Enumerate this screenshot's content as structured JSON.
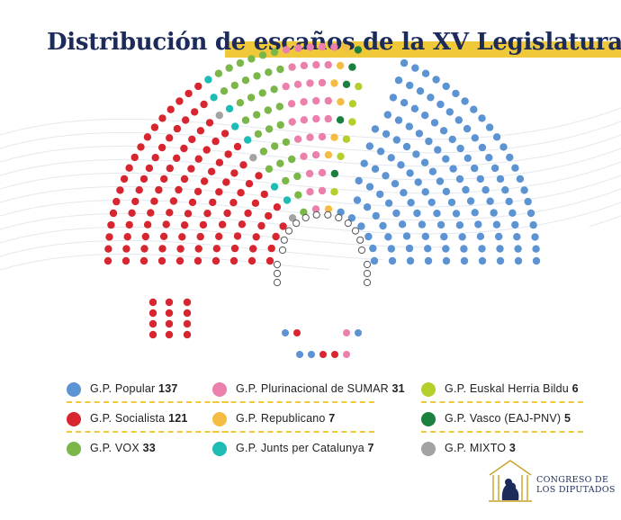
{
  "title": "Distribución de escaños de la XV Legislatura",
  "colors": {
    "title": "#1c2b5a",
    "accent_band": "#f0c93a",
    "government_seat_outline": "#555555"
  },
  "chart_data": {
    "type": "parliament",
    "title": "Distribución de escaños de la XV Legislatura",
    "total_seats": 350,
    "series": [
      {
        "name": "G.P. Popular",
        "values": [
          137
        ],
        "color": "#5b93d3"
      },
      {
        "name": "G.P. Socialista",
        "values": [
          121
        ],
        "color": "#d7262f"
      },
      {
        "name": "G.P. VOX",
        "values": [
          33
        ],
        "color": "#7ab648"
      },
      {
        "name": "G.P. Plurinacional de SUMAR",
        "values": [
          31
        ],
        "color": "#ea80ab"
      },
      {
        "name": "G.P. Republicano",
        "values": [
          7
        ],
        "color": "#f4bc42"
      },
      {
        "name": "G.P. Junts per Catalunya",
        "values": [
          7
        ],
        "color": "#1fbcb6"
      },
      {
        "name": "G.P. Euskal Herria Bildu",
        "values": [
          6
        ],
        "color": "#b3cf2a"
      },
      {
        "name": "G.P. Vasco (EAJ-PNV)",
        "values": [
          5
        ],
        "color": "#1a7f3f"
      },
      {
        "name": "G.P. MIXTO",
        "values": [
          3
        ],
        "color": "#a3a3a3"
      }
    ],
    "legend": [
      {
        "name": "G.P. Popular",
        "count": "137",
        "color": "#5b93d3"
      },
      {
        "name": "G.P. Socialista",
        "count": "121",
        "color": "#d7262f"
      },
      {
        "name": "G.P. VOX",
        "count": "33",
        "color": "#7ab648"
      },
      {
        "name": "G.P. Plurinacional de SUMAR",
        "count": "31",
        "color": "#ea80ab"
      },
      {
        "name": "G.P. Republicano",
        "count": "7",
        "color": "#f4bc42"
      },
      {
        "name": "G.P. Junts per Catalunya",
        "count": "7",
        "color": "#1fbcb6"
      },
      {
        "name": "G.P. Euskal Herria Bildu",
        "count": "6",
        "color": "#b3cf2a"
      },
      {
        "name": "G.P. Vasco (EAJ-PNV)",
        "count": "5",
        "color": "#1a7f3f"
      },
      {
        "name": "G.P. MIXTO",
        "count": "3",
        "color": "#a3a3a3"
      }
    ],
    "legend_placement": "bottom"
  },
  "logo": {
    "line1": "CONGRESO DE",
    "line2": "LOS DIPUTADOS",
    "icon": "congress-building-lion-icon"
  }
}
